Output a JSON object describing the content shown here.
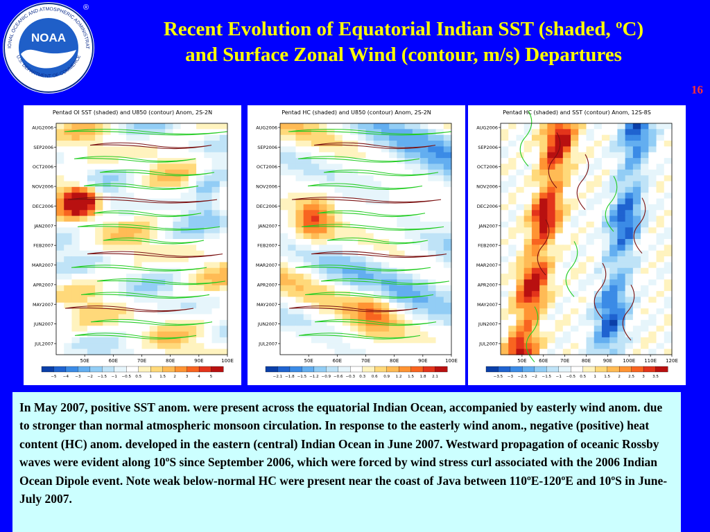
{
  "logo": {
    "center": "NOAA",
    "ring_top": "NATIONAL OCEANIC AND ATMOSPHERIC ADMINISTRATION",
    "ring_bottom": "U.S. DEPARTMENT OF COMMERCE",
    "registered": "®"
  },
  "title": {
    "line1": "Recent Evolution of Equatorial Indian SST (shaded, ºC)",
    "line2": "and Surface Zonal Wind (contour, m/s) Departures"
  },
  "slide_number": "16",
  "caption": "In May 2007, positive SST anom. were present across the equatorial Indian Ocean,  accompanied by easterly wind anom. due to stronger than normal atmospheric monsoon circulation. In response to the easterly wind anom., negative (positive) heat content (HC) anom. developed in the  eastern (central) Indian Ocean in June 2007. Westward propagation of oceanic Rossby waves were evident along 10ºS since September 2006, which were forced by wind stress curl associated with the 2006 Indian Ocean Dipole event. Note weak below-normal HC were present near the coast of Java between 110ºE-120ºE and 10ºS in June-July 2007.",
  "colors": {
    "background": "#0000ff",
    "title": "#ffff00",
    "slide_number": "#ff3333",
    "caption_box": "#ccffff",
    "wind_positive": "#22cc22",
    "wind_negative": "#7a1010"
  },
  "chart_data": [
    {
      "type": "heatmap",
      "title": "Pentad OI SST (shaded) and U850 (contour) Anom, 2S-2N",
      "y_ticks": [
        "AUG2006",
        "SEP2006",
        "OCT2006",
        "NOV2006",
        "DEC2006",
        "JAN2007",
        "FEB2007",
        "MAR2007",
        "APR2007",
        "MAY2007",
        "JUN2007",
        "JUL2007"
      ],
      "x_ticks": [
        "50E",
        "60E",
        "70E",
        "80E",
        "90E",
        "100E"
      ],
      "xlim": [
        40,
        100
      ],
      "colorbar_levels": [
        "−5",
        "−4",
        "−3",
        "−2",
        "−1.5",
        "−1",
        "−0.5",
        "0.5",
        "1",
        "1.5",
        "2",
        "3",
        "4",
        "5"
      ]
    },
    {
      "type": "heatmap",
      "title": "Pentad HC (shaded) and U850 (contour) Anom, 2S-2N",
      "y_ticks": [
        "AUG2006",
        "SEP2006",
        "OCT2006",
        "NOV2006",
        "DEC2006",
        "JAN2007",
        "FEB2007",
        "MAR2007",
        "APR2007",
        "MAY2007",
        "JUN2007",
        "JUL2007"
      ],
      "x_ticks": [
        "50E",
        "60E",
        "70E",
        "80E",
        "90E",
        "100E"
      ],
      "xlim": [
        40,
        100
      ],
      "colorbar_levels": [
        "−2.1",
        "−1.8",
        "−1.5",
        "−1.2",
        "−0.9",
        "−0.6",
        "−0.3",
        "0.3",
        "0.6",
        "0.9",
        "1.2",
        "1.5",
        "1.8",
        "2.1"
      ]
    },
    {
      "type": "heatmap",
      "title": "Pentad HC (shaded) and SST (contour) Anom, 12S-8S",
      "y_ticks": [
        "AUG2006",
        "SEP2006",
        "OCT2006",
        "NOV2006",
        "DEC2006",
        "JAN2007",
        "FEB2007",
        "MAR2007",
        "APR2007",
        "MAY2007",
        "JUN2007",
        "JUL2007"
      ],
      "x_ticks": [
        "50E",
        "60E",
        "70E",
        "80E",
        "90E",
        "100E",
        "110E",
        "120E"
      ],
      "xlim": [
        40,
        120
      ],
      "colorbar_levels": [
        "−3.5",
        "−3",
        "−2.5",
        "−2",
        "−1.5",
        "−1",
        "−0.5",
        "0.5",
        "1",
        "1.5",
        "2",
        "2.5",
        "3",
        "3.5"
      ]
    }
  ]
}
